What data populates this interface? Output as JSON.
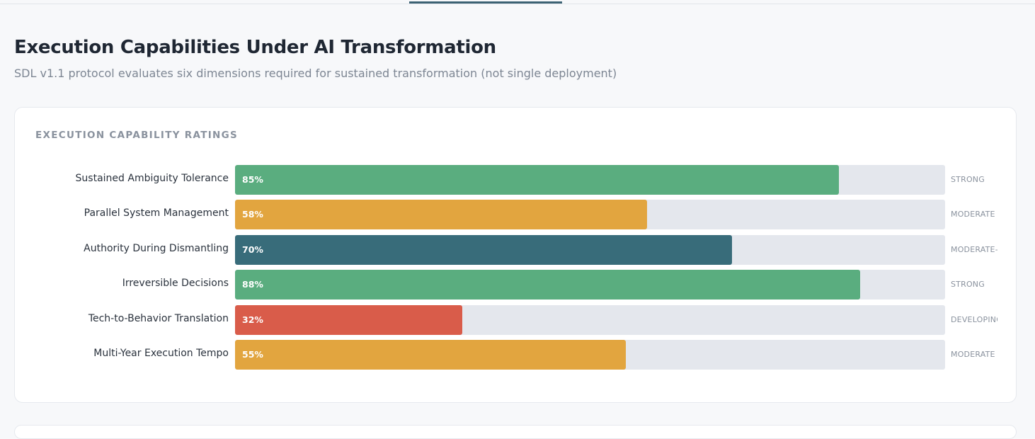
{
  "page": {
    "title": "Execution Capabilities Under AI Transformation",
    "subtitle": "SDL v1.1 protocol evaluates six dimensions required for sustained transformation (not single deployment)"
  },
  "card": {
    "title": "EXECUTION CAPABILITY RATINGS"
  },
  "colors": {
    "strong": "#5aad7f",
    "moderate": "#e2a53f",
    "moderate_plus": "#386c7a",
    "developing": "#d95c4a",
    "track": "#e4e7ed"
  },
  "chart_data": {
    "type": "bar",
    "orientation": "horizontal",
    "title": "EXECUTION CAPABILITY RATINGS",
    "xlim": [
      0,
      100
    ],
    "grid": false,
    "categories": [
      "Sustained Ambiguity Tolerance",
      "Parallel System Management",
      "Authority During Dismantling",
      "Irreversible Decisions",
      "Tech-to-Behavior Translation",
      "Multi-Year Execution Tempo"
    ],
    "values": [
      85,
      58,
      70,
      88,
      32,
      55
    ],
    "value_labels": [
      "85%",
      "58%",
      "70%",
      "88%",
      "32%",
      "55%"
    ],
    "ratings": [
      "STRONG",
      "MODERATE",
      "MODERATE-",
      "STRONG",
      "DEVELOPING",
      "MODERATE"
    ],
    "bar_colors": [
      "#5aad7f",
      "#e2a53f",
      "#386c7a",
      "#5aad7f",
      "#d95c4a",
      "#e2a53f"
    ]
  }
}
